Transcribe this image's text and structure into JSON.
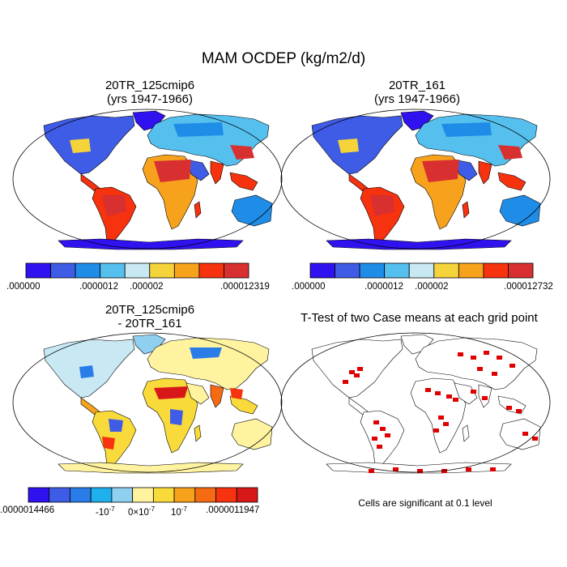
{
  "main_title": "MAM OCDEP (kg/m2/d)",
  "panels": [
    {
      "id": "p1",
      "title_line1": "20TR_125cmip6",
      "title_line2": "(yrs 1947-1966)",
      "colorbar": {
        "colors": [
          "#3012f0",
          "#3f5ce6",
          "#1f8de8",
          "#55bfee",
          "#c8e8f3",
          "#f5d33b",
          "#f7a21c",
          "#f6320f",
          "#d83030"
        ],
        "labels": [
          ".000000",
          ".0000012",
          ".000002",
          ".000012319"
        ]
      }
    },
    {
      "id": "p2",
      "title_line1": "20TR_161",
      "title_line2": "(yrs 1947-1966)",
      "colorbar": {
        "colors": [
          "#3012f0",
          "#3f5ce6",
          "#1f8de8",
          "#55bfee",
          "#c8e8f3",
          "#f5d33b",
          "#f7a21c",
          "#f6320f",
          "#d83030"
        ],
        "labels": [
          ".000000",
          ".0000012",
          ".000002",
          ".000012732"
        ]
      }
    },
    {
      "id": "p3",
      "title_line1": "20TR_125cmip6",
      "title_line2": "- 20TR_161",
      "colorbar": {
        "colors": [
          "#3012f0",
          "#3f5ce6",
          "#2a7de8",
          "#1fb0ee",
          "#8fd0f0",
          "#fff3a0",
          "#f8da3a",
          "#f7a21c",
          "#f66a12",
          "#f6320f",
          "#d81818"
        ],
        "labels": [
          ".0000014466",
          "-10",
          "0×10",
          "10",
          ".0000011947"
        ],
        "exp": "-7"
      }
    },
    {
      "id": "p4",
      "title_line1": "T-Test of two Case means at each grid point",
      "note": "Cells are significant at 0.1 level"
    }
  ]
}
